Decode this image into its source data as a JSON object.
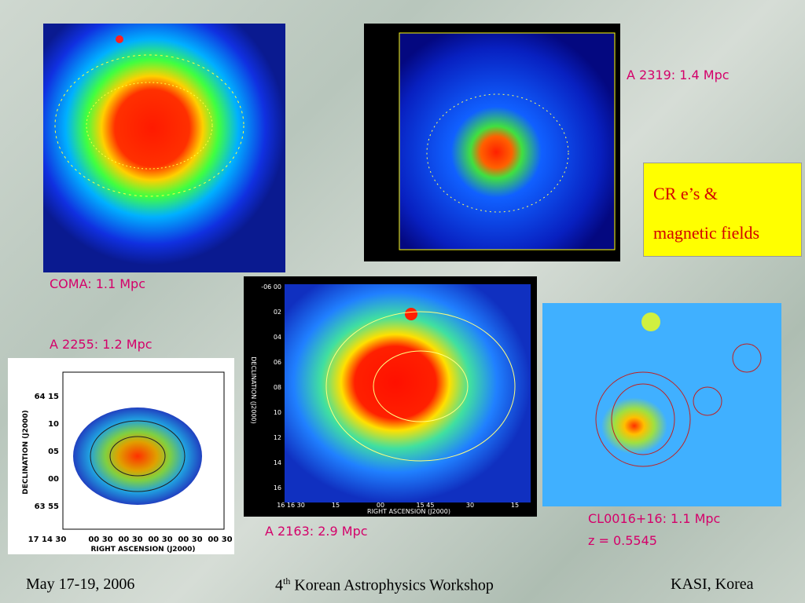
{
  "slide": {
    "panels": [
      {
        "label": "COMA: 1.1 Mpc"
      },
      {
        "label": "A 2319: 1.4 Mpc"
      },
      {
        "label": "A 2255: 1.2 Mpc"
      },
      {
        "label": "A 2163: 2.9 Mpc"
      },
      {
        "label": "CL0016+16: 1.1 Mpc",
        "redshift": "z = 0.5545"
      }
    ],
    "callout": [
      "CR e’s &",
      "magnetic fields"
    ],
    "footer": {
      "date": "May 17-19, 2006",
      "ordinal": "4",
      "suffix": "th",
      "event": "Korean Astrophysics Workshop",
      "place": "KASI, Korea"
    }
  },
  "images": {
    "a2255": {
      "ylabel": "DECLINATION (J2000)",
      "xlabel": "RIGHT ASCENSION (J2000)",
      "yticks": [
        "64 15",
        "10",
        "05",
        "00",
        "63 55"
      ],
      "xticks": [
        "17 14 30",
        "00 30",
        "00 30",
        "00 30",
        "00 30",
        "00 30"
      ]
    },
    "a2163": {
      "ylabel": "DECLINATION (J2000)",
      "xlabel": "RIGHT ASCENSION (J2000)",
      "yticks": [
        "-06 00",
        "02",
        "04",
        "06",
        "08",
        "10",
        "12",
        "14",
        "16"
      ],
      "xticks": [
        "16 16 30",
        "15",
        "00",
        "15 45",
        "30",
        "15"
      ]
    }
  }
}
